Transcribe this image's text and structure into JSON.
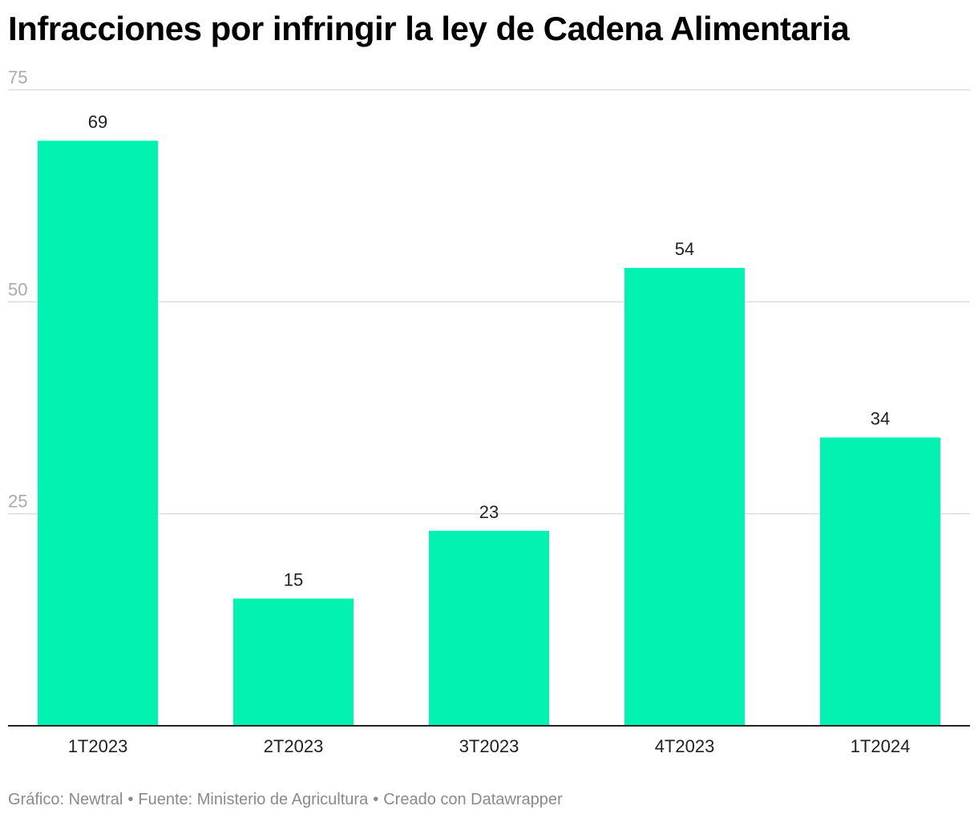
{
  "title": "Infracciones por infringir la ley de Cadena Alimentaria",
  "footer": {
    "grafico": "Gráfico: Newtral",
    "fuente": "Fuente: Ministerio de Agricultura",
    "creado": "Creado con Datawrapper"
  },
  "colors": {
    "bar": "#01f2b1",
    "grid": "#dddddd",
    "baseline": "#222222",
    "tick_text": "#aaaaaa",
    "label_text": "#222222"
  },
  "chart_data": {
    "type": "bar",
    "categories": [
      "1T2023",
      "2T2023",
      "3T2023",
      "4T2023",
      "1T2024"
    ],
    "values": [
      69,
      15,
      23,
      54,
      34
    ],
    "title": "Infracciones por infringir la ley de Cadena Alimentaria",
    "xlabel": "",
    "ylabel": "",
    "ylim": [
      0,
      75
    ],
    "yticks": [
      75,
      50,
      25
    ],
    "grid": true,
    "data_labels": true
  }
}
